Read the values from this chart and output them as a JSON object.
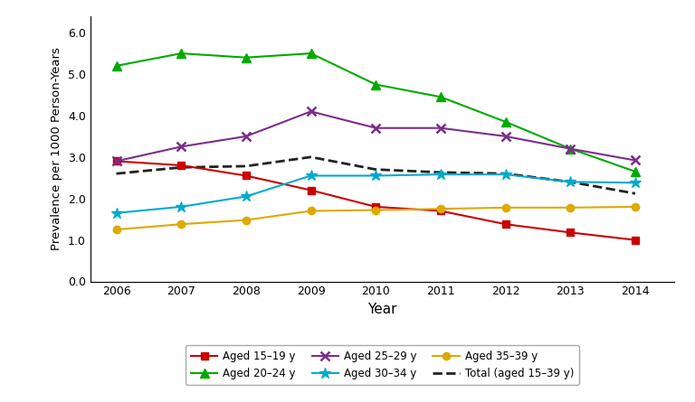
{
  "years": [
    2006,
    2007,
    2008,
    2009,
    2010,
    2011,
    2012,
    2013,
    2014
  ],
  "aged_15_19": [
    2.9,
    2.8,
    2.55,
    2.2,
    1.8,
    1.7,
    1.38,
    1.18,
    1.0
  ],
  "aged_20_24": [
    5.2,
    5.5,
    5.4,
    5.5,
    4.75,
    4.45,
    3.85,
    3.2,
    2.65
  ],
  "aged_25_29": [
    2.9,
    3.25,
    3.5,
    4.1,
    3.7,
    3.7,
    3.5,
    3.2,
    2.92
  ],
  "aged_30_34": [
    1.65,
    1.8,
    2.05,
    2.55,
    2.55,
    2.58,
    2.58,
    2.4,
    2.38
  ],
  "aged_35_39": [
    1.25,
    1.38,
    1.48,
    1.7,
    1.72,
    1.75,
    1.78,
    1.78,
    1.8
  ],
  "total": [
    2.6,
    2.75,
    2.78,
    3.0,
    2.7,
    2.63,
    2.6,
    2.4,
    2.12
  ],
  "color_15_19": "#cc0000",
  "color_20_24": "#00aa00",
  "color_25_29": "#7b2d8b",
  "color_30_34": "#00aacc",
  "color_35_39": "#ddaa00",
  "color_total": "#222222",
  "xlabel": "Year",
  "ylabel": "Prevalence per 1000 Person-Years",
  "ylim": [
    0.0,
    6.4
  ],
  "yticks": [
    0.0,
    1.0,
    2.0,
    3.0,
    4.0,
    5.0,
    6.0
  ],
  "legend_labels": [
    "Aged 15–19 y",
    "Aged 20–24 y",
    "Aged 25–29 y",
    "Aged 30–34 y",
    "Aged 35–39 y",
    "Total (aged 15–39 y)"
  ]
}
